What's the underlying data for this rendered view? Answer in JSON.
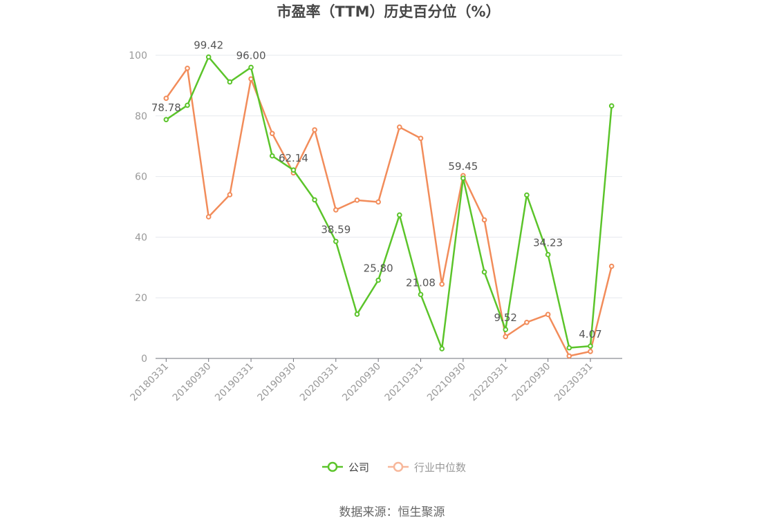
{
  "chart_data": {
    "type": "line",
    "title": "市盈率（TTM）历史百分位（%）",
    "ylim": [
      0,
      100
    ],
    "yticks": [
      0,
      20,
      40,
      60,
      80,
      100
    ],
    "x": [
      "20180331",
      "20180630",
      "20180930",
      "20181231",
      "20190331",
      "20190630",
      "20190930",
      "20191231",
      "20200331",
      "20200630",
      "20200930",
      "20201231",
      "20210331",
      "20210630",
      "20210930",
      "20211231",
      "20220331",
      "20220630",
      "20220930",
      "20221231",
      "20230331",
      "20230630"
    ],
    "x_tick_labels": [
      "20180331",
      "20180930",
      "20190331",
      "20190930",
      "20200331",
      "20200930",
      "20210331",
      "20210930",
      "20220331",
      "20220930",
      "20230331"
    ],
    "grid": true,
    "legend_position": "bottom",
    "series": [
      {
        "name": "公司",
        "color": "#5BC42A",
        "values": [
          78.78,
          83.5,
          99.42,
          91.2,
          96.0,
          66.8,
          62.14,
          52.3,
          38.59,
          14.6,
          25.8,
          47.3,
          21.08,
          3.2,
          59.45,
          28.5,
          9.52,
          53.9,
          34.23,
          3.5,
          4.07,
          83.3
        ],
        "labels": {
          "0": "78.78",
          "2": "99.42",
          "4": "96.00",
          "6": "62.14",
          "8": "38.59",
          "10": "25.80",
          "12": "21.08",
          "14": "59.45",
          "16": "9.52",
          "18": "34.23",
          "20": "4.07"
        }
      },
      {
        "name": "行业中位数",
        "color": "#F28C5A",
        "values": [
          85.8,
          95.7,
          46.7,
          54.0,
          92.2,
          74.2,
          61.2,
          75.4,
          49.0,
          52.2,
          51.6,
          76.3,
          72.6,
          24.5,
          60.3,
          45.7,
          7.2,
          11.9,
          14.5,
          0.8,
          2.3,
          30.4
        ]
      }
    ]
  },
  "source_text": "数据来源：恒生聚源"
}
